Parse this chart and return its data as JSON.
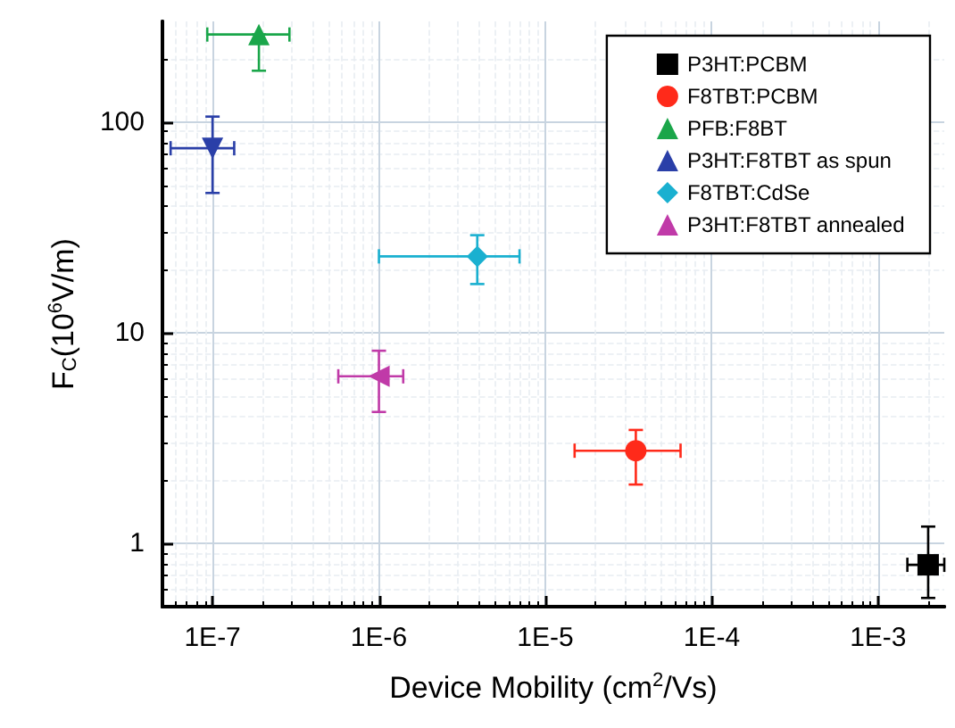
{
  "chart_data": {
    "type": "scatter",
    "xlabel": "Device Mobility (cm$^{2}$/Vs)",
    "ylabel": "F$_{C}$(10$^{6}$V/m)",
    "log": "xy",
    "grid": true,
    "legend": "top right",
    "xlim": [
      5e-08,
      0.0025
    ],
    "xticks": [
      {
        "value": 1e-07,
        "label": "1E-7"
      },
      {
        "value": 1e-06,
        "label": "1E-6"
      },
      {
        "value": 1e-05,
        "label": "1E-5"
      },
      {
        "value": 0.0001,
        "label": "1E-4"
      },
      {
        "value": 0.001,
        "label": "1E-3"
      }
    ],
    "ylim": [
      0.5,
      300
    ],
    "yticks": [
      1,
      10,
      100
    ],
    "series": [
      {
        "name": "P3HT:PCBM",
        "color": "#000000",
        "marker": "square",
        "x": [
          0.002
        ],
        "values": [
          0.79
        ],
        "errors": [
          [
            0.55,
            1.2
          ]
        ],
        "xerrors": [
          [
            0.0015,
            0.0025
          ]
        ]
      },
      {
        "name": "F8TBT:PCBM",
        "color": "#ff2a1a",
        "marker": "circle",
        "x": [
          3.5e-05
        ],
        "values": [
          2.75
        ],
        "errors": [
          [
            1.9,
            3.45
          ]
        ],
        "xerrors": [
          [
            1.5e-05,
            6.5e-05
          ]
        ]
      },
      {
        "name": "PFB:F8BT",
        "color": "#1aa64a",
        "marker": "triangle",
        "x": [
          1.9e-07
        ],
        "values": [
          260
        ],
        "errors": [
          [
            175,
            260
          ]
        ],
        "xerrors": [
          [
            9.3e-08,
            2.9e-07
          ]
        ]
      },
      {
        "name": "P3HT:F8TBT as spun",
        "color": "#2a3fa8",
        "marker": "triangle-down",
        "x": [
          1e-07
        ],
        "values": [
          75
        ],
        "errors": [
          [
            46,
            106
          ]
        ],
        "xerrors": [
          [
            5.6e-08,
            1.35e-07
          ]
        ]
      },
      {
        "name": "F8TBT:CdSe",
        "color": "#1ab0d0",
        "marker": "diamond",
        "x": [
          3.9e-06
        ],
        "values": [
          23
        ],
        "errors": [
          [
            17,
            29
          ]
        ],
        "xerrors": [
          [
            1e-06,
            7e-06
          ]
        ]
      },
      {
        "name": "P3HT:F8TBT annealed",
        "color": "#c03aa8",
        "marker": "triangle-left",
        "x": [
          1e-06
        ],
        "values": [
          6.2
        ],
        "errors": [
          [
            4.2,
            8.2
          ]
        ],
        "xerrors": [
          [
            5.7e-07,
            1.4e-06
          ]
        ]
      }
    ]
  }
}
